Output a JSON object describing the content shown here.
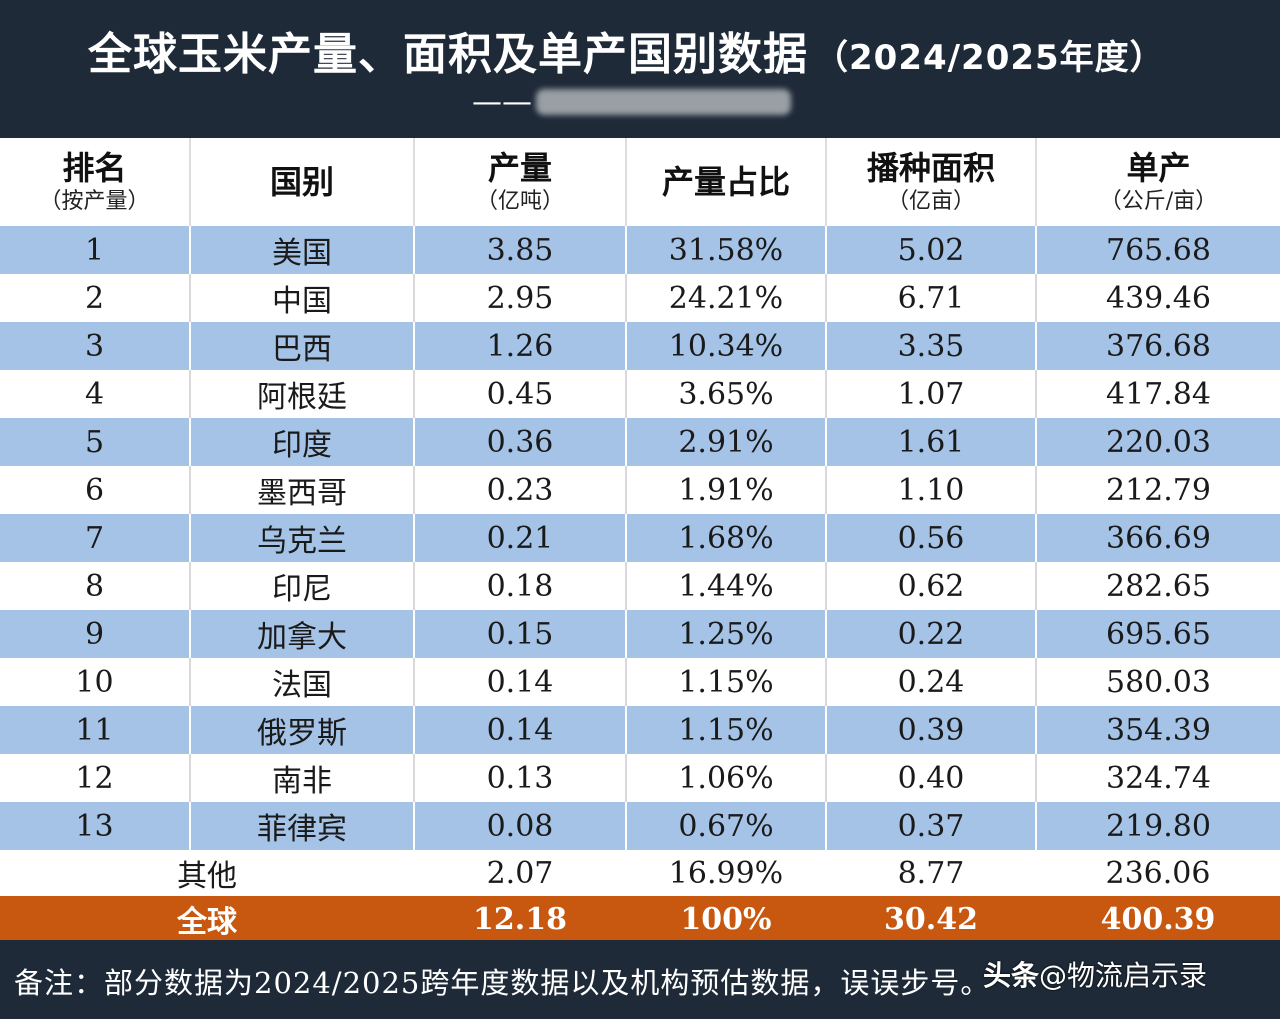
{
  "header": {
    "title": "全球玉米产量、面积及单产国别数据",
    "title_year": "（2024/2025年度）",
    "subtitle_dash": "——"
  },
  "table": {
    "columns": [
      {
        "label": "排名",
        "unit": "（按产量）"
      },
      {
        "label": "国别",
        "unit": ""
      },
      {
        "label": "产量",
        "unit": "（亿吨）"
      },
      {
        "label": "产量占比",
        "unit": ""
      },
      {
        "label": "播种面积",
        "unit": "（亿亩）"
      },
      {
        "label": "单产",
        "unit": "（公斤/亩）"
      }
    ],
    "rows": [
      {
        "rank": "1",
        "country": "美国",
        "output": "3.85",
        "share": "31.58%",
        "area": "5.02",
        "yield": "765.68"
      },
      {
        "rank": "2",
        "country": "中国",
        "output": "2.95",
        "share": "24.21%",
        "area": "6.71",
        "yield": "439.46"
      },
      {
        "rank": "3",
        "country": "巴西",
        "output": "1.26",
        "share": "10.34%",
        "area": "3.35",
        "yield": "376.68"
      },
      {
        "rank": "4",
        "country": "阿根廷",
        "output": "0.45",
        "share": "3.65%",
        "area": "1.07",
        "yield": "417.84"
      },
      {
        "rank": "5",
        "country": "印度",
        "output": "0.36",
        "share": "2.91%",
        "area": "1.61",
        "yield": "220.03"
      },
      {
        "rank": "6",
        "country": "墨西哥",
        "output": "0.23",
        "share": "1.91%",
        "area": "1.10",
        "yield": "212.79"
      },
      {
        "rank": "7",
        "country": "乌克兰",
        "output": "0.21",
        "share": "1.68%",
        "area": "0.56",
        "yield": "366.69"
      },
      {
        "rank": "8",
        "country": "印尼",
        "output": "0.18",
        "share": "1.44%",
        "area": "0.62",
        "yield": "282.65"
      },
      {
        "rank": "9",
        "country": "加拿大",
        "output": "0.15",
        "share": "1.25%",
        "area": "0.22",
        "yield": "695.65"
      },
      {
        "rank": "10",
        "country": "法国",
        "output": "0.14",
        "share": "1.15%",
        "area": "0.24",
        "yield": "580.03"
      },
      {
        "rank": "11",
        "country": "俄罗斯",
        "output": "0.14",
        "share": "1.15%",
        "area": "0.39",
        "yield": "354.39"
      },
      {
        "rank": "12",
        "country": "南非",
        "output": "0.13",
        "share": "1.06%",
        "area": "0.40",
        "yield": "324.74"
      },
      {
        "rank": "13",
        "country": "菲律宾",
        "output": "0.08",
        "share": "0.67%",
        "area": "0.37",
        "yield": "219.80"
      }
    ],
    "other": {
      "label": "其他",
      "output": "2.07",
      "share": "16.99%",
      "area": "8.77",
      "yield": "236.06"
    },
    "total": {
      "label": "全球",
      "output": "12.18",
      "share": "100%",
      "area": "30.42",
      "yield": "400.39"
    }
  },
  "footer": {
    "note": "备注：部分数据为2024/2025跨年度数据以及机构预估数据，误误步号。",
    "watermark_brand": "头条",
    "watermark_handle": "@物流启示录"
  },
  "colors": {
    "header_bg": "#1e2a38",
    "row_blue": "#a4c3e6",
    "row_white": "#ffffff",
    "total_bg": "#c8580f"
  }
}
